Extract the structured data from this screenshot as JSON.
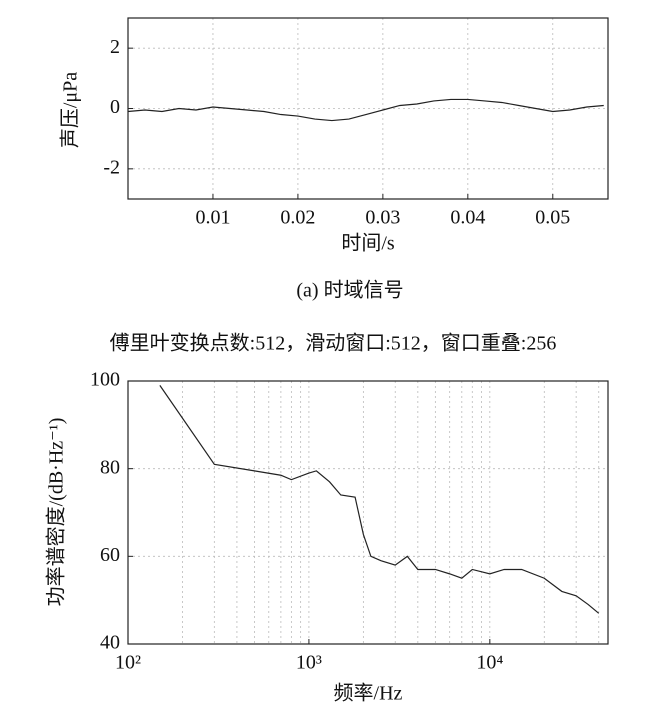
{
  "chart_data": [
    {
      "type": "line",
      "ylabel": "声压/μPa",
      "xlabel": "时间/s",
      "caption": "(a) 时域信号",
      "xlim": [
        0,
        0.0565
      ],
      "xticks": [
        0.01,
        0.02,
        0.03,
        0.04,
        0.05
      ],
      "ylim": [
        -3,
        3
      ],
      "yticks": [
        -2,
        0,
        2
      ],
      "grid": true,
      "xscale": "linear",
      "series": [
        {
          "color": "#222222",
          "x": [
            0,
            0.002,
            0.004,
            0.006,
            0.008,
            0.01,
            0.012,
            0.014,
            0.016,
            0.018,
            0.02,
            0.022,
            0.024,
            0.026,
            0.028,
            0.03,
            0.032,
            0.034,
            0.036,
            0.038,
            0.04,
            0.042,
            0.044,
            0.046,
            0.048,
            0.05,
            0.052,
            0.054,
            0.056
          ],
          "values": [
            -0.1,
            -0.05,
            -0.1,
            0.0,
            -0.05,
            0.05,
            0.0,
            -0.05,
            -0.1,
            -0.2,
            -0.25,
            -0.35,
            -0.4,
            -0.35,
            -0.2,
            -0.05,
            0.1,
            0.15,
            0.25,
            0.3,
            0.3,
            0.25,
            0.2,
            0.1,
            0.0,
            -0.1,
            -0.05,
            0.05,
            0.1
          ]
        }
      ]
    },
    {
      "type": "line",
      "title": "傅里叶变换点数:512，滑动窗口:512，窗口重叠:256",
      "ylabel": "功率谱密度/(dB·Hz⁻¹)",
      "xlabel": "频率/Hz",
      "xlim": [
        100,
        45000
      ],
      "xticks": [
        {
          "value": 100,
          "label": "10²"
        },
        {
          "value": 1000,
          "label": "10³"
        },
        {
          "value": 10000,
          "label": "10⁴"
        }
      ],
      "ylim": [
        40,
        100
      ],
      "yticks": [
        40,
        60,
        80,
        100
      ],
      "grid": true,
      "xscale": "log",
      "series": [
        {
          "color": "#222222",
          "x": [
            150,
            300,
            500,
            700,
            800,
            1000,
            1100,
            1300,
            1500,
            1800,
            2000,
            2200,
            2500,
            3000,
            3500,
            4000,
            5000,
            6000,
            7000,
            8000,
            10000,
            12000,
            15000,
            20000,
            25000,
            30000,
            35000,
            40000
          ],
          "values": [
            99,
            81,
            79.5,
            78.5,
            77.5,
            79,
            79.5,
            77,
            74,
            73.5,
            65,
            60,
            59,
            58,
            60,
            57,
            57,
            56,
            55,
            57,
            56,
            57,
            57,
            55,
            52,
            51,
            49,
            47
          ]
        }
      ]
    }
  ]
}
